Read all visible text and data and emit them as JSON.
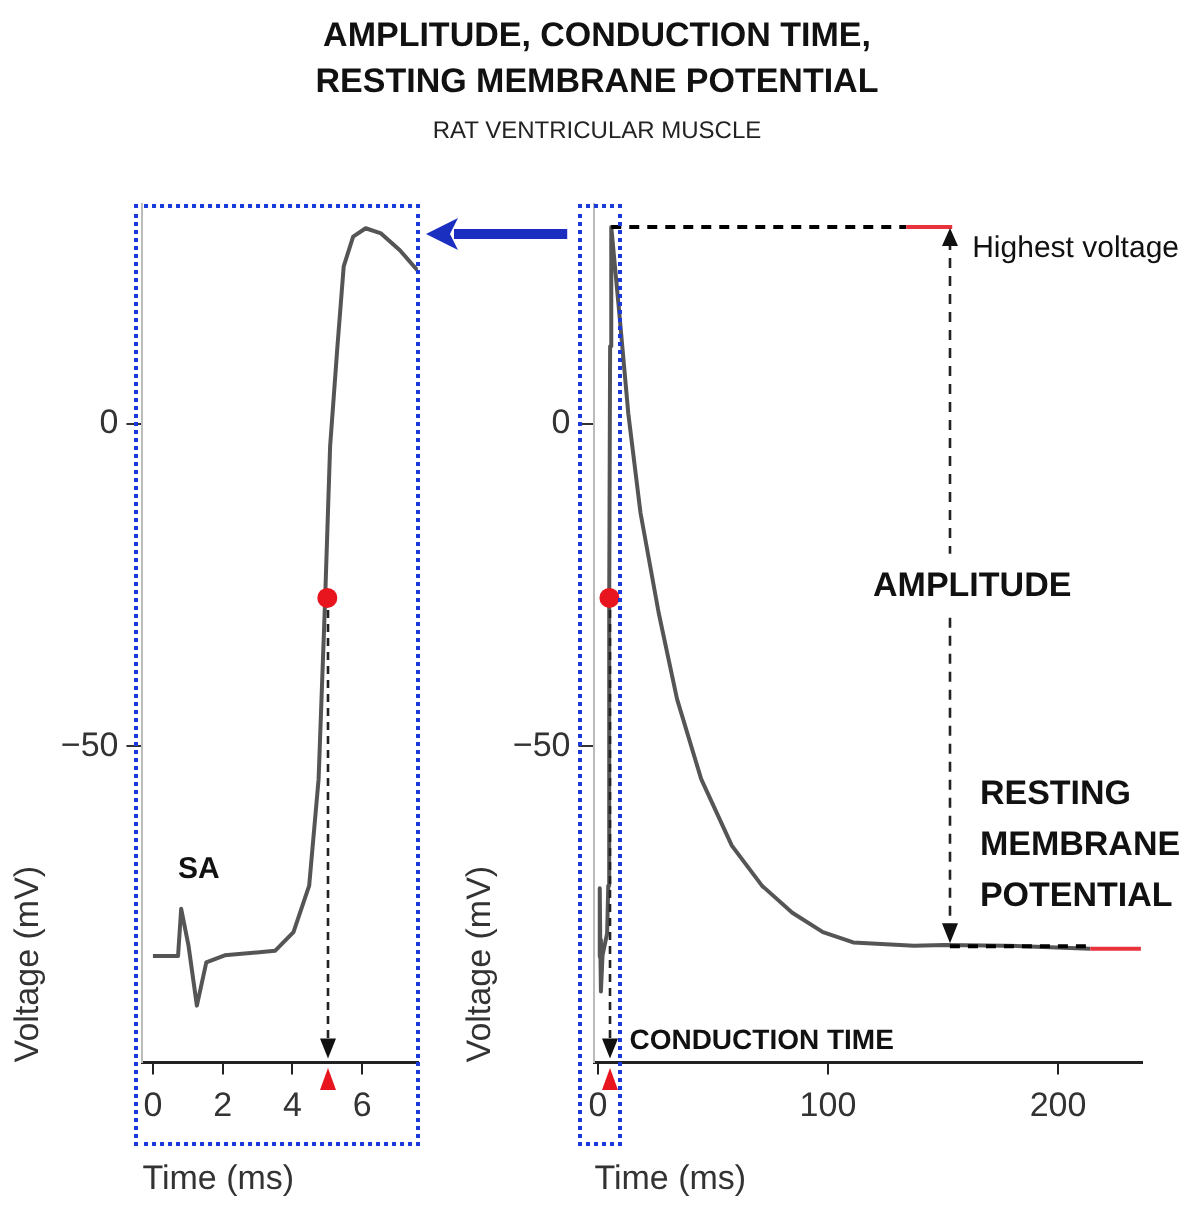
{
  "chart_data": [
    {
      "type": "line",
      "xlabel": "Time (ms)",
      "ylabel": "Voltage (mV)",
      "xlim": [
        -0.3,
        7.6
      ],
      "xticks": [
        0,
        2,
        4,
        6
      ],
      "ylim": [
        -99,
        34
      ],
      "yticks": [
        0,
        {
          "value": -50,
          "label": "−50"
        }
      ],
      "grid": false,
      "legend": false,
      "marker": "none",
      "series": [
        {
          "color": "#555555",
          "x": [
            0,
            0.72,
            0.81,
            1.02,
            1.26,
            1.53,
            2.06,
            3.5,
            4.03,
            4.48,
            4.75,
            4.93,
            5.08,
            5.29,
            5.47,
            5.74,
            6.1,
            6.54,
            7.08,
            7.58
          ],
          "values": [
            -82.5,
            -82.5,
            -75.2,
            -80.9,
            -90.2,
            -83.5,
            -82.4,
            -81.7,
            -78.8,
            -71.6,
            -55.1,
            -28.3,
            -3.5,
            12,
            24.4,
            29,
            30.3,
            29.5,
            26.9,
            23.8
          ]
        },
        {
          "type": "scatter",
          "marker": "circle",
          "color": "#e8141e",
          "x": [
            5
          ],
          "values": [
            -27
          ]
        }
      ],
      "annotations": [
        {
          "text": "SA",
          "x": 0.8,
          "y": -75
        }
      ]
    },
    {
      "type": "line",
      "title": "AMPLITUDE, CONDUCTION TIME,\nRESTING MEMBRANE POTENTIAL",
      "subtitle": "RAT VENTRICULAR MUSCLE",
      "xlabel": "Time (ms)",
      "ylabel": "Voltage (mV)",
      "xlim": [
        -1.5,
        236.5
      ],
      "xticks": [
        0,
        100,
        200
      ],
      "ylim": [
        -99,
        34
      ],
      "yticks": [
        0,
        {
          "value": -50,
          "label": "−50"
        }
      ],
      "grid": false,
      "legend": false,
      "marker": "none",
      "series": [
        {
          "color": "#555555",
          "x": [
            0,
            0.7,
            0.8,
            1.0,
            1.3,
            2,
            4,
            4.5,
            4.9,
            5.3,
            5.8,
            9.3,
            13.2,
            18.5,
            26.4,
            34.4,
            44.9,
            58.2,
            71.3,
            84.5,
            97.8,
            111,
            137.4,
            150.6,
            177,
            214
          ],
          "values": [
            -82.5,
            -82.5,
            -72,
            -80,
            -88,
            -82.4,
            -79,
            -71.6,
            -28,
            12,
            30.5,
            17.1,
            1.6,
            -13.8,
            -29.3,
            -42.7,
            -55.1,
            -65.4,
            -71.6,
            -75.8,
            -78.8,
            -80.4,
            -80.9,
            -80.8,
            -80.9,
            -81.4
          ]
        },
        {
          "type": "line",
          "line_style": "dashed",
          "color": "#000000",
          "x": [
            5.8,
            134
          ],
          "values": [
            30.5,
            30.5
          ]
        },
        {
          "type": "line",
          "color": "#e8323c",
          "x": [
            134,
            154
          ],
          "values": [
            30.5,
            30.5
          ]
        },
        {
          "type": "line",
          "line_style": "dashed",
          "color": "#000000",
          "x": [
            153,
            214
          ],
          "values": [
            -81,
            -81
          ]
        },
        {
          "type": "line",
          "color": "#e8323c",
          "x": [
            214,
            236
          ],
          "values": [
            -81.4,
            -81.4
          ]
        },
        {
          "type": "scatter",
          "marker": "circle",
          "color": "#e8141e",
          "x": [
            5
          ],
          "values": [
            -27
          ]
        }
      ],
      "annotations": [
        {
          "text": "Highest voltage",
          "x": 154,
          "y": 30.5
        },
        "AMPLITUDE",
        {
          "text": "RESTING MEMBRANE POTENTIAL",
          "x": 153,
          "y": -81
        },
        {
          "text": "CONDUCTION TIME",
          "x": 5,
          "y": -97
        }
      ]
    }
  ]
}
